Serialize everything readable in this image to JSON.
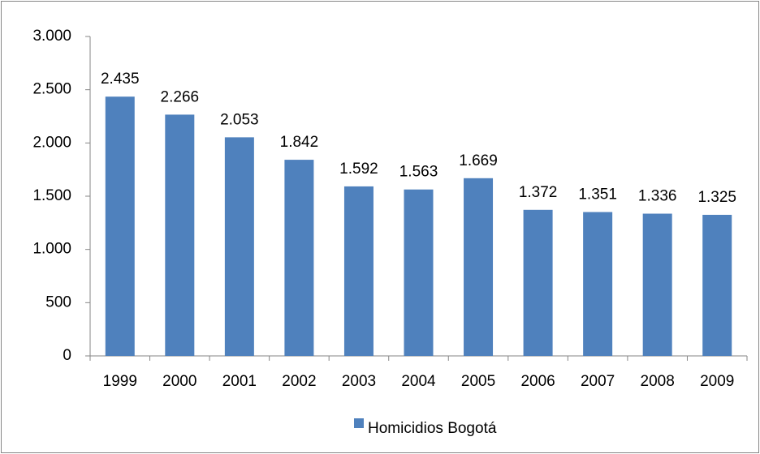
{
  "chart_data": {
    "type": "bar",
    "categories": [
      "1999",
      "2000",
      "2001",
      "2002",
      "2003",
      "2004",
      "2005",
      "2006",
      "2007",
      "2008",
      "2009"
    ],
    "series": [
      {
        "name": "Homicidios Bogotá",
        "color": "#4f81bd",
        "values": [
          2435,
          2266,
          2053,
          1842,
          1592,
          1563,
          1669,
          1372,
          1351,
          1336,
          1325
        ],
        "value_labels": [
          "2.435",
          "2.266",
          "2.053",
          "1.842",
          "1.592",
          "1.563",
          "1.669",
          "1.372",
          "1.351",
          "1.336",
          "1.325"
        ]
      }
    ],
    "ylim": [
      0,
      3000
    ],
    "yticks": [
      0,
      500,
      {
        "value": 1000,
        "label": "1.000"
      },
      {
        "value": 1500,
        "label": "1.500"
      },
      {
        "value": 2000,
        "label": "2.000"
      },
      {
        "value": 2500,
        "label": "2.500"
      },
      {
        "value": 3000,
        "label": "3.000"
      }
    ],
    "legend": "bottom"
  }
}
